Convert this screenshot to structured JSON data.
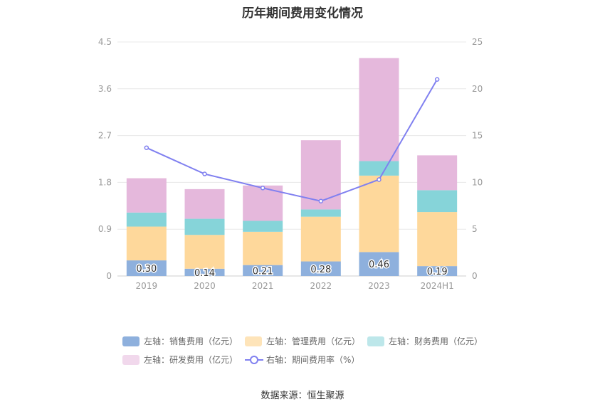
{
  "chart_title": "历年期间费用变化情况",
  "source": "数据来源：恒生聚源",
  "colors": {
    "sales": "#8eb0dd",
    "admin": "#fed89b",
    "finance": "#86d4d9",
    "rd": "#e5b8dc",
    "rate": "#8080f0",
    "grid": "#e8e8e8",
    "axis_text": "#999999",
    "legend_text": "#666666"
  },
  "chart_data": {
    "type": "bar",
    "stacked": true,
    "categories": [
      "2019",
      "2020",
      "2021",
      "2022",
      "2023",
      "2024H1"
    ],
    "series": [
      {
        "name": "左轴：销售费用（亿元）",
        "axis": "left",
        "color_key": "sales",
        "values": [
          0.3,
          0.14,
          0.21,
          0.28,
          0.46,
          0.19
        ],
        "labels": [
          "0.30",
          "0.14",
          "0.21",
          "0.28",
          "0.46",
          "0.19"
        ]
      },
      {
        "name": "左轴：管理费用（亿元）",
        "axis": "left",
        "color_key": "admin",
        "values": [
          0.65,
          0.65,
          0.64,
          0.86,
          1.47,
          1.04
        ]
      },
      {
        "name": "左轴：财务费用（亿元）",
        "axis": "left",
        "color_key": "finance",
        "values": [
          0.27,
          0.31,
          0.21,
          0.14,
          0.28,
          0.42
        ]
      },
      {
        "name": "左轴：研发费用（亿元）",
        "axis": "left",
        "color_key": "rd",
        "values": [
          0.66,
          0.57,
          0.68,
          1.33,
          1.98,
          0.67
        ]
      },
      {
        "name": "右轴：期间费用率（%）",
        "axis": "right",
        "type": "line",
        "color_key": "rate",
        "values": [
          13.7,
          10.9,
          9.4,
          8.0,
          10.3,
          21.0
        ]
      }
    ],
    "y_left": {
      "min": 0,
      "max": 4.5,
      "ticks": [
        "0",
        "0.9",
        "1.8",
        "2.7",
        "3.6",
        "4.5"
      ]
    },
    "y_right": {
      "min": 0,
      "max": 25,
      "ticks": [
        "0",
        "5",
        "10",
        "15",
        "20",
        "25"
      ]
    },
    "grid": true,
    "legend_position": "bottom"
  }
}
